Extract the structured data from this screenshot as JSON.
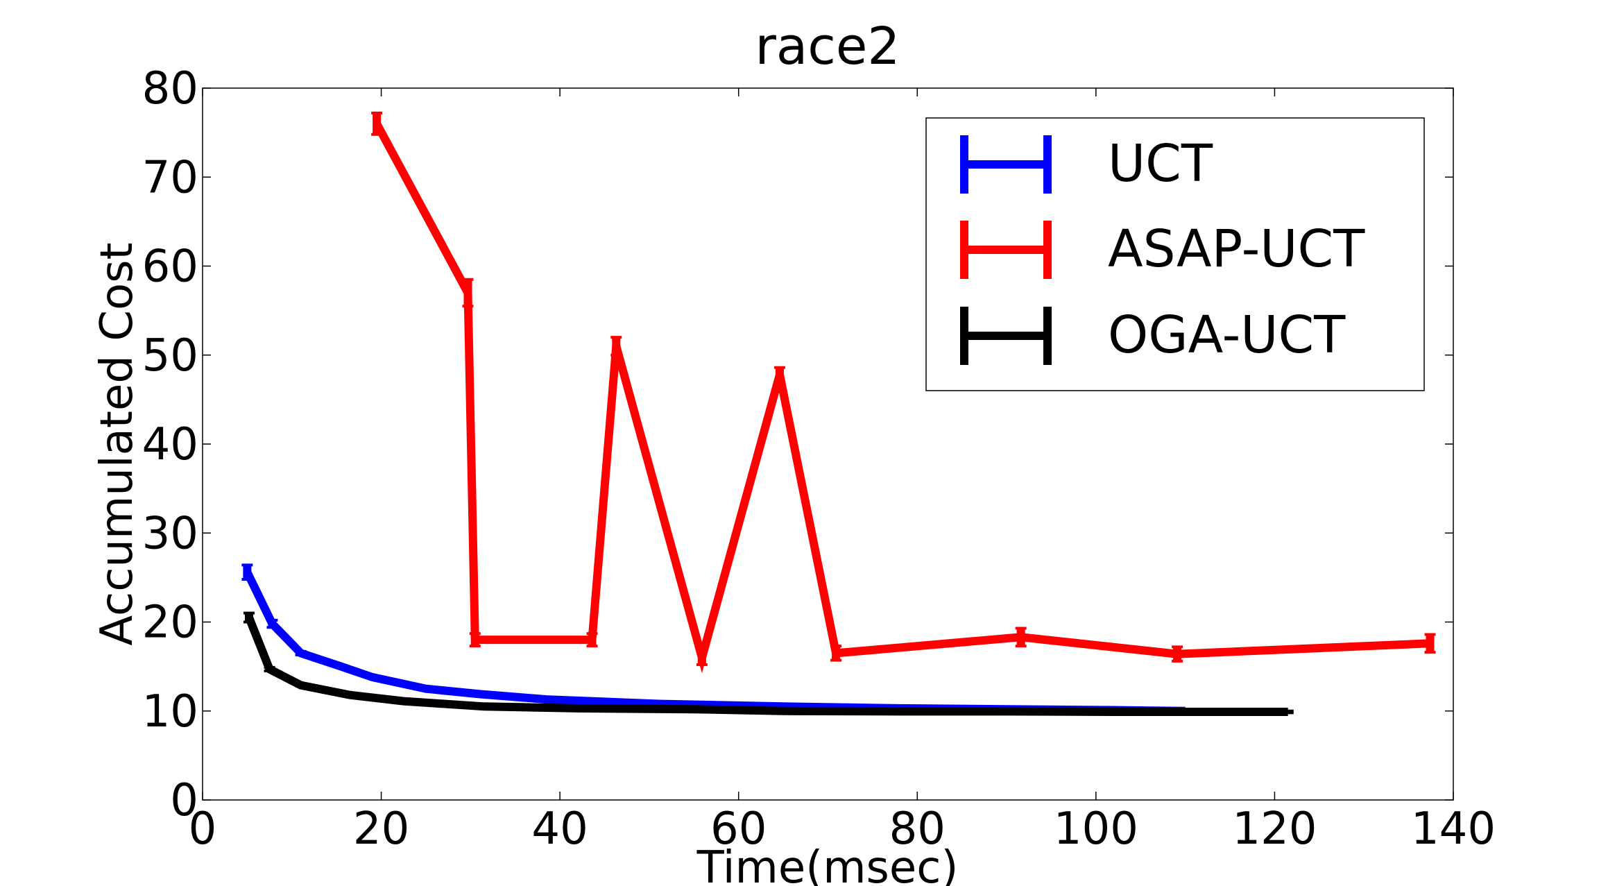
{
  "chart_data": {
    "type": "line",
    "title": "race2",
    "xlabel": "Time(msec)",
    "ylabel": "Accumulated Cost",
    "xlim": [
      0,
      140
    ],
    "ylim": [
      0,
      80
    ],
    "xticks": [
      0,
      20,
      40,
      60,
      80,
      100,
      120,
      140
    ],
    "yticks": [
      0,
      10,
      20,
      30,
      40,
      50,
      60,
      70,
      80
    ],
    "xtick_labels": [
      "0",
      "20",
      "40",
      "60",
      "80",
      "100",
      "120",
      "140"
    ],
    "ytick_labels": [
      "0",
      "10",
      "20",
      "30",
      "40",
      "50",
      "60",
      "70",
      "80"
    ],
    "grid": false,
    "legend_position": "top-right",
    "series": [
      {
        "name": "UCT",
        "color": "#0000ff",
        "x": [
          5,
          7.8,
          11,
          15.5,
          19,
          25,
          31,
          38.5,
          51,
          65,
          78,
          90,
          102,
          110
        ],
        "y": [
          25.6,
          19.8,
          16.5,
          15,
          13.8,
          12.5,
          11.9,
          11.3,
          10.8,
          10.5,
          10.3,
          10.2,
          10.1,
          10.0
        ],
        "err": [
          0.8,
          0.4,
          0.2,
          0.1,
          0.1,
          0.1,
          0.1,
          0.1,
          0.1,
          0.1,
          0.1,
          0.1,
          0.1,
          0.1
        ]
      },
      {
        "name": "ASAP-UCT",
        "color": "#ff0000",
        "x": [
          19.5,
          29.7,
          30.5,
          43.6,
          46.3,
          55.9,
          64.6,
          70.9,
          91.6,
          109.1,
          137.4
        ],
        "y": [
          76,
          57,
          18,
          18,
          51,
          16,
          47.8,
          16.5,
          18.3,
          16.4,
          17.6
        ],
        "err": [
          1.2,
          1.5,
          0.7,
          0.7,
          1.0,
          0.8,
          0.8,
          0.8,
          1.0,
          0.8,
          1.0
        ]
      },
      {
        "name": "OGA-UCT",
        "color": "#000000",
        "x": [
          5.2,
          7.5,
          11,
          16.5,
          22.5,
          31.5,
          42,
          55,
          65,
          78,
          90,
          102,
          110,
          121.5
        ],
        "y": [
          20.5,
          14.7,
          12.9,
          11.8,
          11.1,
          10.5,
          10.3,
          10.2,
          10.0,
          9.95,
          9.95,
          9.9,
          9.9,
          9.9
        ],
        "err": [
          0.5,
          0.2,
          0.1,
          0.1,
          0.1,
          0.1,
          0.1,
          0.1,
          0.1,
          0.1,
          0.1,
          0.1,
          0.1,
          0.1
        ]
      }
    ]
  }
}
